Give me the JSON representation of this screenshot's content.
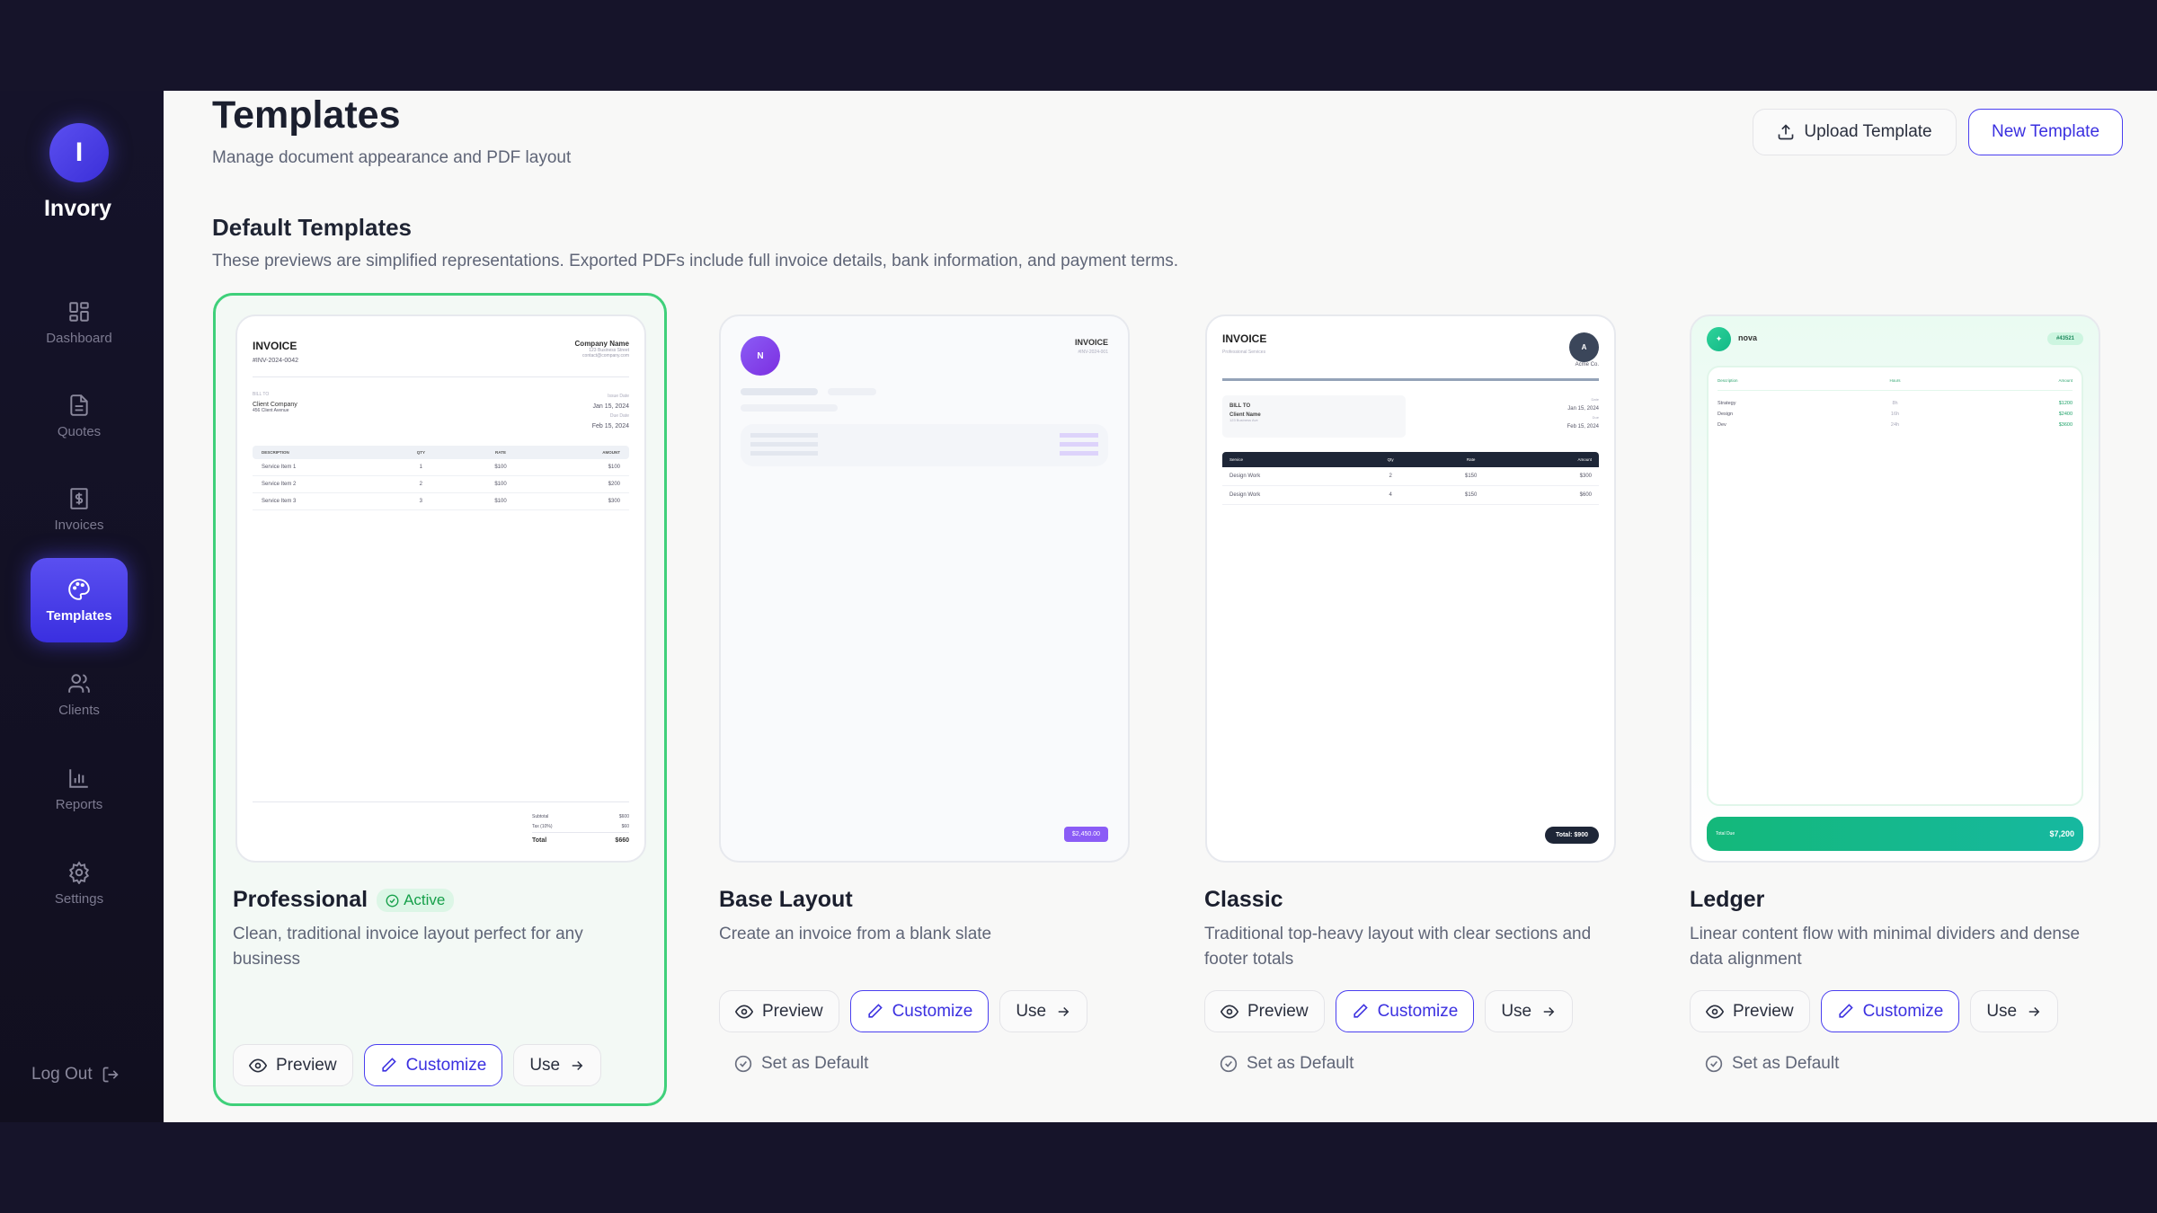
{
  "app": {
    "logo_letter": "I",
    "name": "Invory"
  },
  "sidebar": {
    "items": [
      {
        "label": "Dashboard",
        "icon": "grid-icon"
      },
      {
        "label": "Quotes",
        "icon": "file-text-icon"
      },
      {
        "label": "Invoices",
        "icon": "receipt-dollar-icon"
      },
      {
        "label": "Templates",
        "icon": "palette-icon",
        "active": true
      },
      {
        "label": "Clients",
        "icon": "users-icon"
      },
      {
        "label": "Reports",
        "icon": "bar-chart-icon"
      },
      {
        "label": "Settings",
        "icon": "gear-icon"
      }
    ],
    "logout": "Log Out"
  },
  "header": {
    "title": "Templates",
    "subtitle": "Manage document appearance and PDF layout",
    "upload": "Upload Template",
    "new": "New Template"
  },
  "section": {
    "title": "Default Templates",
    "description": "These previews are simplified representations. Exported PDFs include full invoice details, bank information, and payment terms."
  },
  "actions": {
    "preview": "Preview",
    "customize": "Customize",
    "use": "Use",
    "set_default": "Set as Default",
    "active": "Active"
  },
  "colors": {
    "accent": "#4a3ff0",
    "active_green": "#3fd07a",
    "sidebar": "#15132a"
  },
  "templates": [
    {
      "name": "Professional",
      "description": "Clean, traditional invoice layout perfect for any business",
      "active": true,
      "preview": {
        "title": "INVOICE",
        "number": "#INV-2024-0042",
        "company": "Company Name",
        "street": "123 Business Street",
        "email": "contact@company.com",
        "bill_to": "BILL TO",
        "client": "Client Company",
        "client_addr": "456 Client Avenue",
        "issue_label": "Issue Date",
        "issue": "Jan 15, 2024",
        "due_label": "Due Date",
        "due": "Feb 15, 2024",
        "columns": [
          "DESCRIPTION",
          "QTY",
          "RATE",
          "AMOUNT"
        ],
        "rows": [
          [
            "Service Item 1",
            "1",
            "$100",
            "$100"
          ],
          [
            "Service Item 2",
            "2",
            "$100",
            "$200"
          ],
          [
            "Service Item 3",
            "3",
            "$100",
            "$300"
          ]
        ],
        "subtotal_label": "Subtotal",
        "subtotal": "$600",
        "tax_label": "Tax (10%)",
        "tax": "$60",
        "total_label": "Total",
        "total": "$660"
      }
    },
    {
      "name": "Base Layout",
      "description": "Create an invoice from a blank slate",
      "preview": {
        "logo": "N",
        "title": "INVOICE",
        "number": "#INV-2024-001",
        "total": "$2,450.00"
      }
    },
    {
      "name": "Classic",
      "description": "Traditional top-heavy layout with clear sections and footer totals",
      "preview": {
        "title": "INVOICE",
        "subtitle": "Professional Services",
        "logo": "A",
        "company": "Acme Co.",
        "bill_to": "BILL TO",
        "client": "Client Name",
        "client_addr": "123 Business Ave",
        "date_label": "Date",
        "date": "Jan 15, 2024",
        "due_label": "Due",
        "due": "Feb 15, 2024",
        "columns": [
          "Service",
          "Qty",
          "Rate",
          "Amount"
        ],
        "rows": [
          [
            "Design Work",
            "2",
            "$150",
            "$300"
          ],
          [
            "Design Work",
            "4",
            "$150",
            "$600"
          ]
        ],
        "total": "Total: $900"
      }
    },
    {
      "name": "Ledger",
      "description": "Linear content flow with minimal dividers and dense data alignment",
      "preview": {
        "brand": "nova",
        "number": "#43521",
        "columns": [
          "Description",
          "Hours",
          "Amount"
        ],
        "rows": [
          [
            "Strategy",
            "8h",
            "$1200"
          ],
          [
            "Design",
            "16h",
            "$2400"
          ],
          [
            "Dev",
            "24h",
            "$3600"
          ]
        ],
        "total_label": "Total Due",
        "total": "$7,200"
      }
    }
  ]
}
